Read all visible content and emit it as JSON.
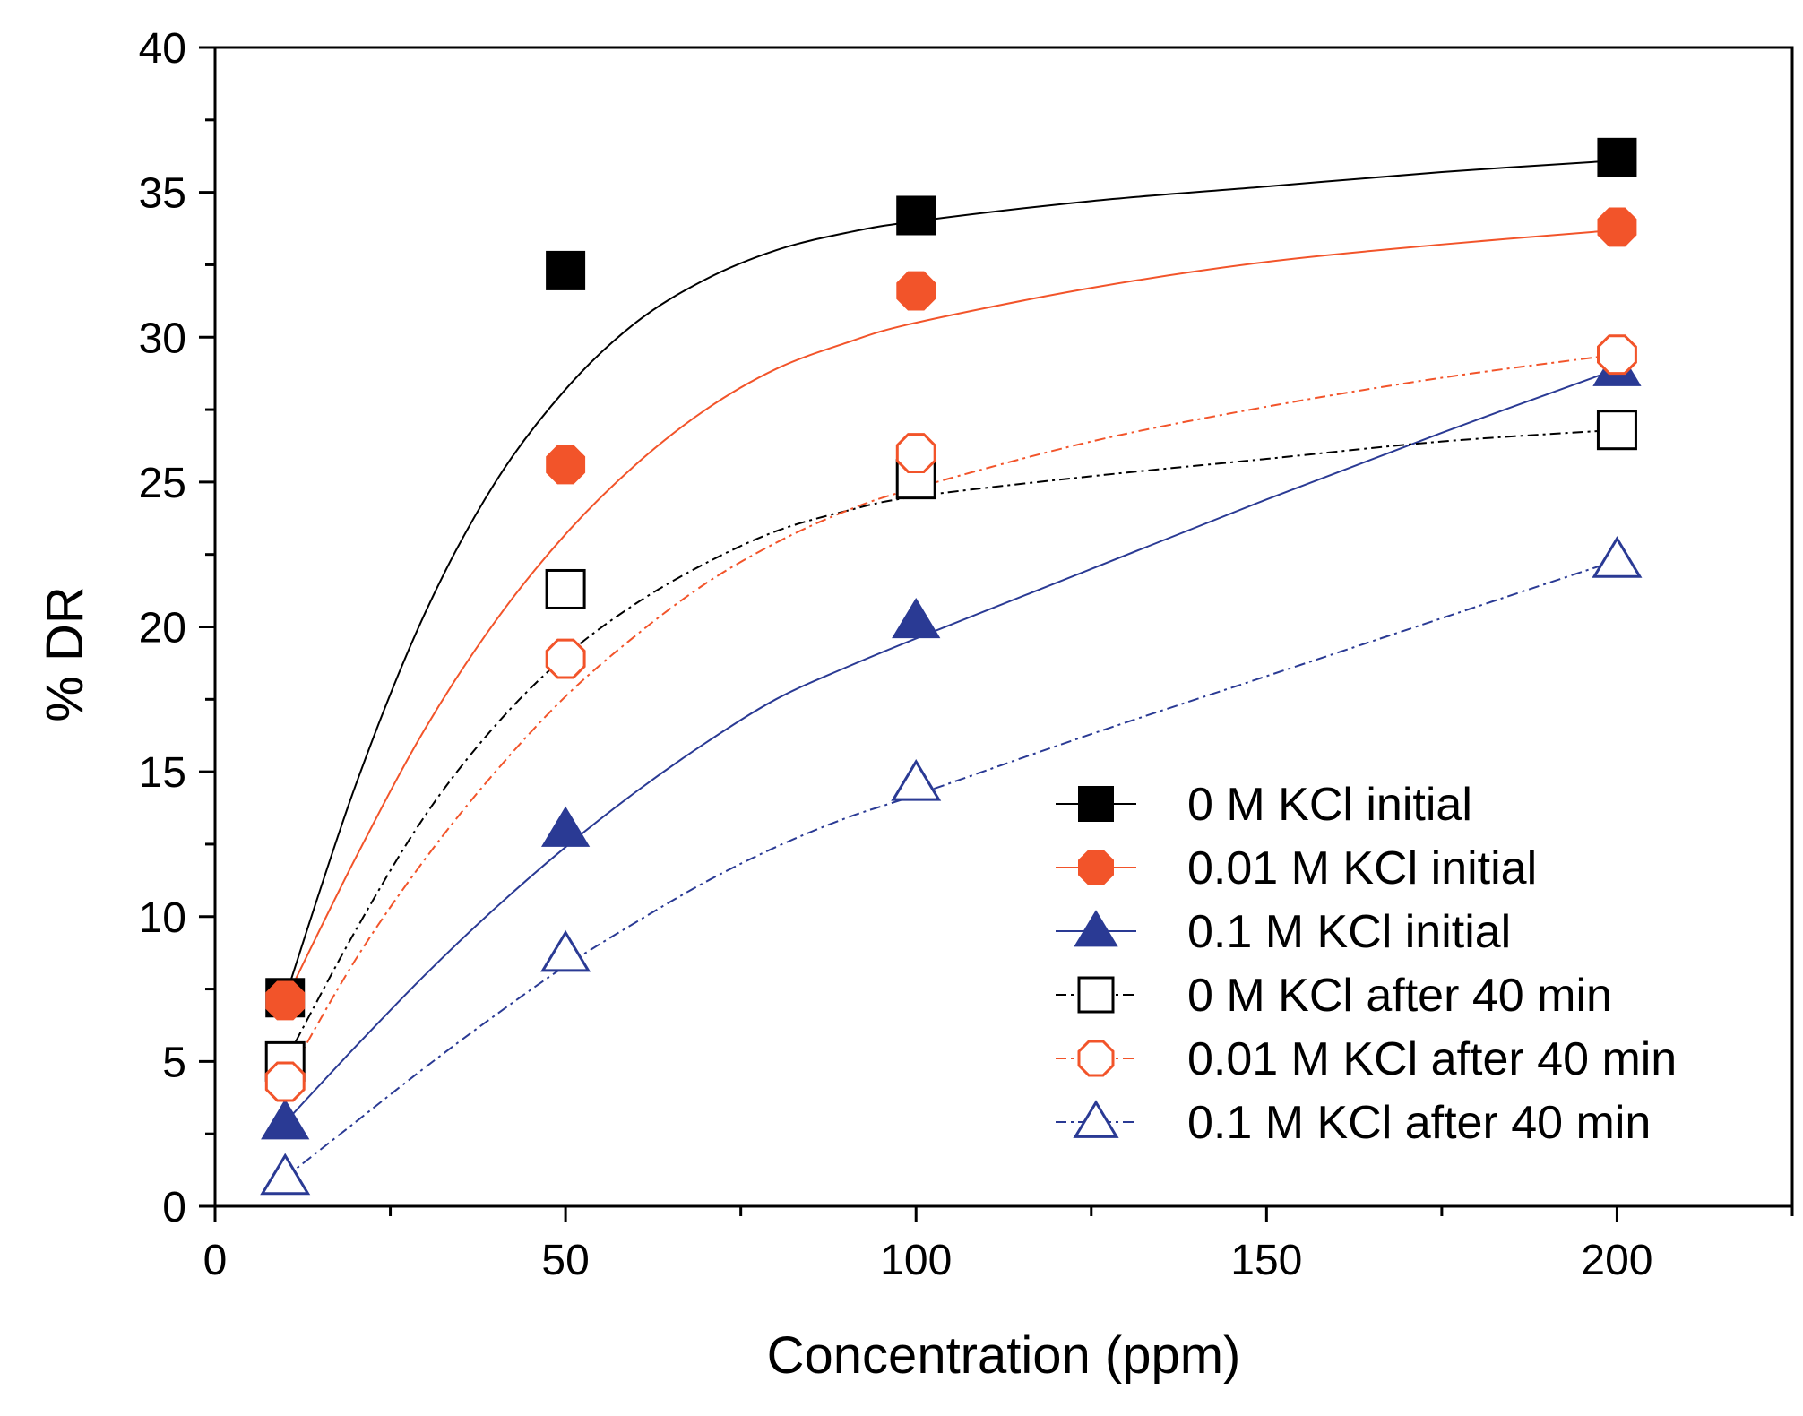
{
  "chart_data": {
    "type": "scatter",
    "title": "",
    "xlabel": "Concentration (ppm)",
    "ylabel": "% DR",
    "xlim": [
      0,
      225
    ],
    "ylim": [
      0,
      40
    ],
    "xticks": [
      0,
      50,
      100,
      150,
      200
    ],
    "xticks_minor": [
      25,
      75,
      125,
      175,
      225
    ],
    "yticks": [
      0,
      5,
      10,
      15,
      20,
      25,
      30,
      35,
      40
    ],
    "legend_position": "lower-right",
    "series": [
      {
        "name": "0 M KCl initial",
        "color": "#000000",
        "marker": "square",
        "filled": true,
        "line": "solid",
        "x": [
          10,
          50,
          100,
          200
        ],
        "y": [
          7.2,
          32.3,
          34.2,
          36.2
        ],
        "fit": [
          [
            10,
            7.2
          ],
          [
            20,
            14.5
          ],
          [
            30,
            20.5
          ],
          [
            40,
            25.0
          ],
          [
            50,
            28.2
          ],
          [
            60,
            30.5
          ],
          [
            70,
            32.0
          ],
          [
            80,
            33.0
          ],
          [
            90,
            33.6
          ],
          [
            100,
            34.0
          ],
          [
            125,
            34.7
          ],
          [
            150,
            35.2
          ],
          [
            175,
            35.7
          ],
          [
            200,
            36.1
          ]
        ]
      },
      {
        "name": "0.01 M KCl initial",
        "color": "#f2542a",
        "marker": "circle",
        "filled": true,
        "line": "solid",
        "x": [
          10,
          50,
          100,
          200
        ],
        "y": [
          7.1,
          25.6,
          31.6,
          33.8
        ],
        "fit": [
          [
            10,
            7.1
          ],
          [
            20,
            12.0
          ],
          [
            30,
            16.5
          ],
          [
            40,
            20.2
          ],
          [
            50,
            23.2
          ],
          [
            60,
            25.6
          ],
          [
            70,
            27.5
          ],
          [
            80,
            28.9
          ],
          [
            90,
            29.8
          ],
          [
            100,
            30.5
          ],
          [
            125,
            31.7
          ],
          [
            150,
            32.6
          ],
          [
            175,
            33.2
          ],
          [
            200,
            33.7
          ]
        ]
      },
      {
        "name": "0.1 M KCl initial",
        "color": "#2a3a94",
        "marker": "triangle",
        "filled": true,
        "line": "solid",
        "x": [
          10,
          50,
          100,
          200
        ],
        "y": [
          2.9,
          13.0,
          20.2,
          28.9
        ],
        "fit": [
          [
            10,
            2.9
          ],
          [
            20,
            5.5
          ],
          [
            30,
            8.0
          ],
          [
            40,
            10.3
          ],
          [
            50,
            12.4
          ],
          [
            60,
            14.3
          ],
          [
            70,
            16.0
          ],
          [
            80,
            17.5
          ],
          [
            90,
            18.6
          ],
          [
            100,
            19.6
          ],
          [
            125,
            22.0
          ],
          [
            150,
            24.4
          ],
          [
            175,
            26.7
          ],
          [
            200,
            28.9
          ]
        ]
      },
      {
        "name": "0 M KCl after 40 min",
        "color": "#000000",
        "marker": "square",
        "filled": false,
        "line": "dashdot",
        "x": [
          10,
          50,
          100,
          200
        ],
        "y": [
          5.0,
          21.3,
          25.1,
          26.8
        ],
        "fit": [
          [
            10,
            5.0
          ],
          [
            20,
            9.5
          ],
          [
            30,
            13.5
          ],
          [
            40,
            16.6
          ],
          [
            50,
            19.0
          ],
          [
            60,
            20.8
          ],
          [
            70,
            22.2
          ],
          [
            80,
            23.3
          ],
          [
            90,
            24.0
          ],
          [
            100,
            24.5
          ],
          [
            125,
            25.2
          ],
          [
            150,
            25.8
          ],
          [
            175,
            26.4
          ],
          [
            200,
            26.8
          ]
        ]
      },
      {
        "name": "0.01 M KCl after 40 min",
        "color": "#f2542a",
        "marker": "circle",
        "filled": false,
        "line": "dashdot",
        "x": [
          10,
          50,
          100,
          200
        ],
        "y": [
          4.3,
          18.9,
          26.0,
          29.4
        ],
        "fit": [
          [
            10,
            4.3
          ],
          [
            20,
            8.5
          ],
          [
            30,
            12.0
          ],
          [
            40,
            15.0
          ],
          [
            50,
            17.6
          ],
          [
            60,
            19.7
          ],
          [
            70,
            21.5
          ],
          [
            80,
            22.9
          ],
          [
            90,
            24.0
          ],
          [
            100,
            24.8
          ],
          [
            125,
            26.4
          ],
          [
            150,
            27.6
          ],
          [
            175,
            28.6
          ],
          [
            200,
            29.4
          ]
        ]
      },
      {
        "name": "0.1 M KCl after 40 min",
        "color": "#2a3a94",
        "marker": "triangle",
        "filled": false,
        "line": "dashdot",
        "x": [
          10,
          50,
          100,
          200
        ],
        "y": [
          1.0,
          8.7,
          14.6,
          22.3
        ],
        "fit": [
          [
            10,
            1.0
          ],
          [
            20,
            2.9
          ],
          [
            30,
            4.8
          ],
          [
            40,
            6.6
          ],
          [
            50,
            8.3
          ],
          [
            60,
            9.8
          ],
          [
            70,
            11.2
          ],
          [
            80,
            12.4
          ],
          [
            90,
            13.4
          ],
          [
            100,
            14.2
          ],
          [
            125,
            16.3
          ],
          [
            150,
            18.3
          ],
          [
            175,
            20.3
          ],
          [
            200,
            22.3
          ]
        ]
      }
    ]
  }
}
